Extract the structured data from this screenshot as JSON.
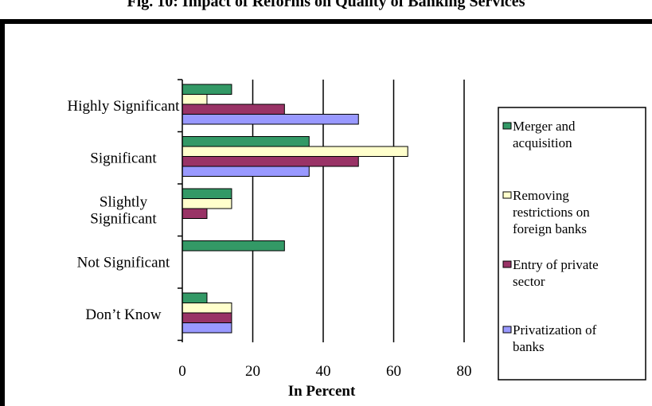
{
  "title": "Fig. 10: Impact of Reforms on Quality of Banking Services",
  "chart_data": {
    "type": "bar",
    "orientation": "horizontal",
    "categories": [
      "Highly Significant",
      "Significant",
      "Slightly Significant",
      "Not Significant",
      "Don’t Know"
    ],
    "category_lines": [
      [
        "Highly Significant"
      ],
      [
        "Significant"
      ],
      [
        "Slightly",
        "Significant"
      ],
      [
        "Not Significant"
      ],
      [
        "Don’t Know"
      ]
    ],
    "series": [
      {
        "name": "Merger and acquisition",
        "name_lines": [
          "Merger and",
          "acquisition"
        ],
        "color": "#339966",
        "values": [
          14,
          36,
          14,
          29,
          7
        ]
      },
      {
        "name": "Removing restrictions on foreign banks",
        "name_lines": [
          "Removing",
          "restrictions on",
          "foreign banks"
        ],
        "color": "#ffffcc",
        "values": [
          7,
          64,
          14,
          0,
          14
        ]
      },
      {
        "name": "Entry of private sector",
        "name_lines": [
          "Entry of  private",
          "sector"
        ],
        "color": "#993366",
        "values": [
          29,
          50,
          7,
          0,
          14
        ]
      },
      {
        "name": "Privatization of banks",
        "name_lines": [
          "Privatization of",
          "banks"
        ],
        "color": "#9999ff",
        "values": [
          50,
          36,
          0,
          0,
          14
        ]
      }
    ],
    "xlim": [
      0,
      80
    ],
    "xticks": [
      0,
      20,
      40,
      60,
      80
    ],
    "xlabel": "In Percent",
    "ylabel": "",
    "grid": "vertical",
    "legend_position": "right"
  }
}
